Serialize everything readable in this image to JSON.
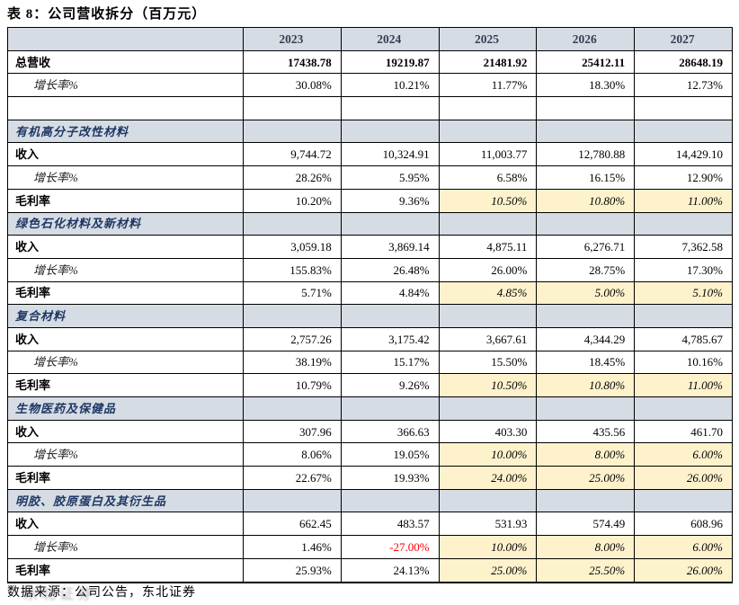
{
  "title": "表 8：公司营收拆分（百万元）",
  "footer": {
    "source": "数据来源：公司公告，东北证券",
    "watermark": "东北证券"
  },
  "colors": {
    "header_bg": "#d6dce4",
    "header_text": "#333f50",
    "section_text": "#1f3864",
    "highlight_bg": "#fdf2cc",
    "negative_text": "#ff0000",
    "border": "#000000"
  },
  "chart_data": {
    "type": "table",
    "title": "表 8：公司营收拆分（百万元）",
    "columns": [
      "2023",
      "2024",
      "2025",
      "2026",
      "2027"
    ],
    "rows": [
      {
        "kind": "data",
        "label": "总营收",
        "label_bold": true,
        "value_bold": true,
        "values": [
          "17438.78",
          "19219.87",
          "21481.92",
          "25412.11",
          "28648.19"
        ]
      },
      {
        "kind": "data",
        "label": "增长率%",
        "label_italic": true,
        "indent": true,
        "values": [
          "30.08%",
          "10.21%",
          "11.77%",
          "18.30%",
          "12.73%"
        ]
      },
      {
        "kind": "empty",
        "label": "",
        "values": [
          "",
          "",
          "",
          "",
          ""
        ]
      },
      {
        "kind": "section",
        "label": "有机高分子改性材料",
        "values": [
          "",
          "",
          "",
          "",
          ""
        ]
      },
      {
        "kind": "data",
        "label": "收入",
        "label_bold": true,
        "values": [
          "9,744.72",
          "10,324.91",
          "11,003.77",
          "12,780.88",
          "14,429.10"
        ]
      },
      {
        "kind": "data",
        "label": "增长率%",
        "label_italic": true,
        "indent": true,
        "values": [
          "28.26%",
          "5.95%",
          "6.58%",
          "16.15%",
          "12.90%"
        ]
      },
      {
        "kind": "data",
        "label": "毛利率",
        "label_bold": true,
        "highlight": [
          2,
          3,
          4
        ],
        "values": [
          "10.20%",
          "9.36%",
          "10.50%",
          "10.80%",
          "11.00%"
        ]
      },
      {
        "kind": "section",
        "label": "绿色石化材料及新材料",
        "values": [
          "",
          "",
          "",
          "",
          ""
        ]
      },
      {
        "kind": "data",
        "label": "收入",
        "label_bold": true,
        "values": [
          "3,059.18",
          "3,869.14",
          "4,875.11",
          "6,276.71",
          "7,362.58"
        ]
      },
      {
        "kind": "data",
        "label": "增长率%",
        "label_italic": true,
        "indent": true,
        "values": [
          "155.83%",
          "26.48%",
          "26.00%",
          "28.75%",
          "17.30%"
        ]
      },
      {
        "kind": "data",
        "label": "毛利率",
        "label_bold": true,
        "highlight": [
          2,
          3,
          4
        ],
        "values": [
          "5.71%",
          "4.84%",
          "4.85%",
          "5.00%",
          "5.10%"
        ]
      },
      {
        "kind": "section",
        "label": "复合材料",
        "values": [
          "",
          "",
          "",
          "",
          ""
        ]
      },
      {
        "kind": "data",
        "label": "收入",
        "label_bold": true,
        "values": [
          "2,757.26",
          "3,175.42",
          "3,667.61",
          "4,344.29",
          "4,785.67"
        ]
      },
      {
        "kind": "data",
        "label": "增长率%",
        "label_italic": true,
        "indent": true,
        "values": [
          "38.19%",
          "15.17%",
          "15.50%",
          "18.45%",
          "10.16%"
        ]
      },
      {
        "kind": "data",
        "label": "毛利率",
        "label_bold": true,
        "highlight": [
          2,
          3,
          4
        ],
        "values": [
          "10.79%",
          "9.26%",
          "10.50%",
          "10.80%",
          "11.00%"
        ]
      },
      {
        "kind": "section",
        "label": "生物医药及保健品",
        "values": [
          "",
          "",
          "",
          "",
          ""
        ]
      },
      {
        "kind": "data",
        "label": "收入",
        "label_bold": true,
        "values": [
          "307.96",
          "366.63",
          "403.30",
          "435.56",
          "461.70"
        ]
      },
      {
        "kind": "data",
        "label": "增长率%",
        "label_italic": true,
        "indent": true,
        "highlight": [
          2,
          3,
          4
        ],
        "values": [
          "8.06%",
          "19.05%",
          "10.00%",
          "8.00%",
          "6.00%"
        ]
      },
      {
        "kind": "data",
        "label": "毛利率",
        "label_bold": true,
        "highlight": [
          2,
          3,
          4
        ],
        "values": [
          "22.67%",
          "19.93%",
          "24.00%",
          "25.00%",
          "26.00%"
        ]
      },
      {
        "kind": "section",
        "label": "明胶、胶原蛋白及其衍生品",
        "values": [
          "",
          "",
          "",
          "",
          ""
        ]
      },
      {
        "kind": "data",
        "label": "收入",
        "label_bold": true,
        "values": [
          "662.45",
          "483.57",
          "531.93",
          "574.49",
          "608.96"
        ]
      },
      {
        "kind": "data",
        "label": "增长率%",
        "label_italic": true,
        "indent": true,
        "highlight": [
          2,
          3,
          4
        ],
        "red": [
          1
        ],
        "values": [
          "1.46%",
          "-27.00%",
          "10.00%",
          "8.00%",
          "6.00%"
        ]
      },
      {
        "kind": "data",
        "label": "毛利率",
        "label_bold": true,
        "highlight": [
          2,
          3,
          4
        ],
        "values": [
          "25.93%",
          "24.13%",
          "25.00%",
          "25.50%",
          "26.00%"
        ]
      }
    ]
  }
}
